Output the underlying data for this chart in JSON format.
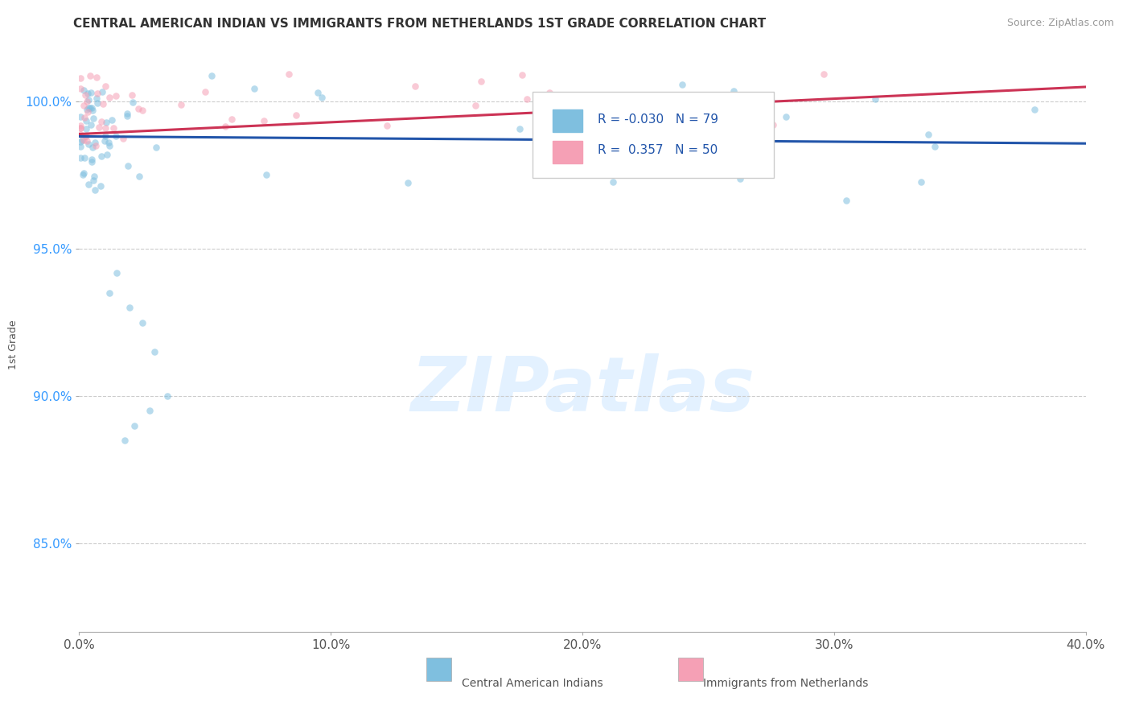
{
  "title": "CENTRAL AMERICAN INDIAN VS IMMIGRANTS FROM NETHERLANDS 1ST GRADE CORRELATION CHART",
  "source": "Source: ZipAtlas.com",
  "ylabel": "1st Grade",
  "xlim": [
    0.0,
    40.0
  ],
  "ylim": [
    82.0,
    101.5
  ],
  "blue_label": "Central American Indians",
  "pink_label": "Immigrants from Netherlands",
  "blue_R": -0.03,
  "blue_N": 79,
  "pink_R": 0.357,
  "pink_N": 50,
  "blue_color": "#7fbfdf",
  "pink_color": "#f5a0b5",
  "blue_line_color": "#2255aa",
  "pink_line_color": "#cc3355",
  "ytick_vals": [
    85.0,
    90.0,
    95.0,
    100.0
  ],
  "ytick_labels": [
    "85.0%",
    "90.0%",
    "95.0%",
    "100.0%"
  ],
  "xtick_vals": [
    0.0,
    10.0,
    20.0,
    30.0,
    40.0
  ],
  "xtick_labels": [
    "0.0%",
    "10.0%",
    "20.0%",
    "30.0%",
    "40.0%"
  ],
  "blue_line_y0": 98.82,
  "blue_line_y1": 98.58,
  "pink_line_y0": 98.9,
  "pink_line_y1": 100.5,
  "watermark_text": "ZIPatlas",
  "title_fontsize": 11,
  "source_fontsize": 9,
  "tick_fontsize": 11,
  "legend_fontsize": 11
}
